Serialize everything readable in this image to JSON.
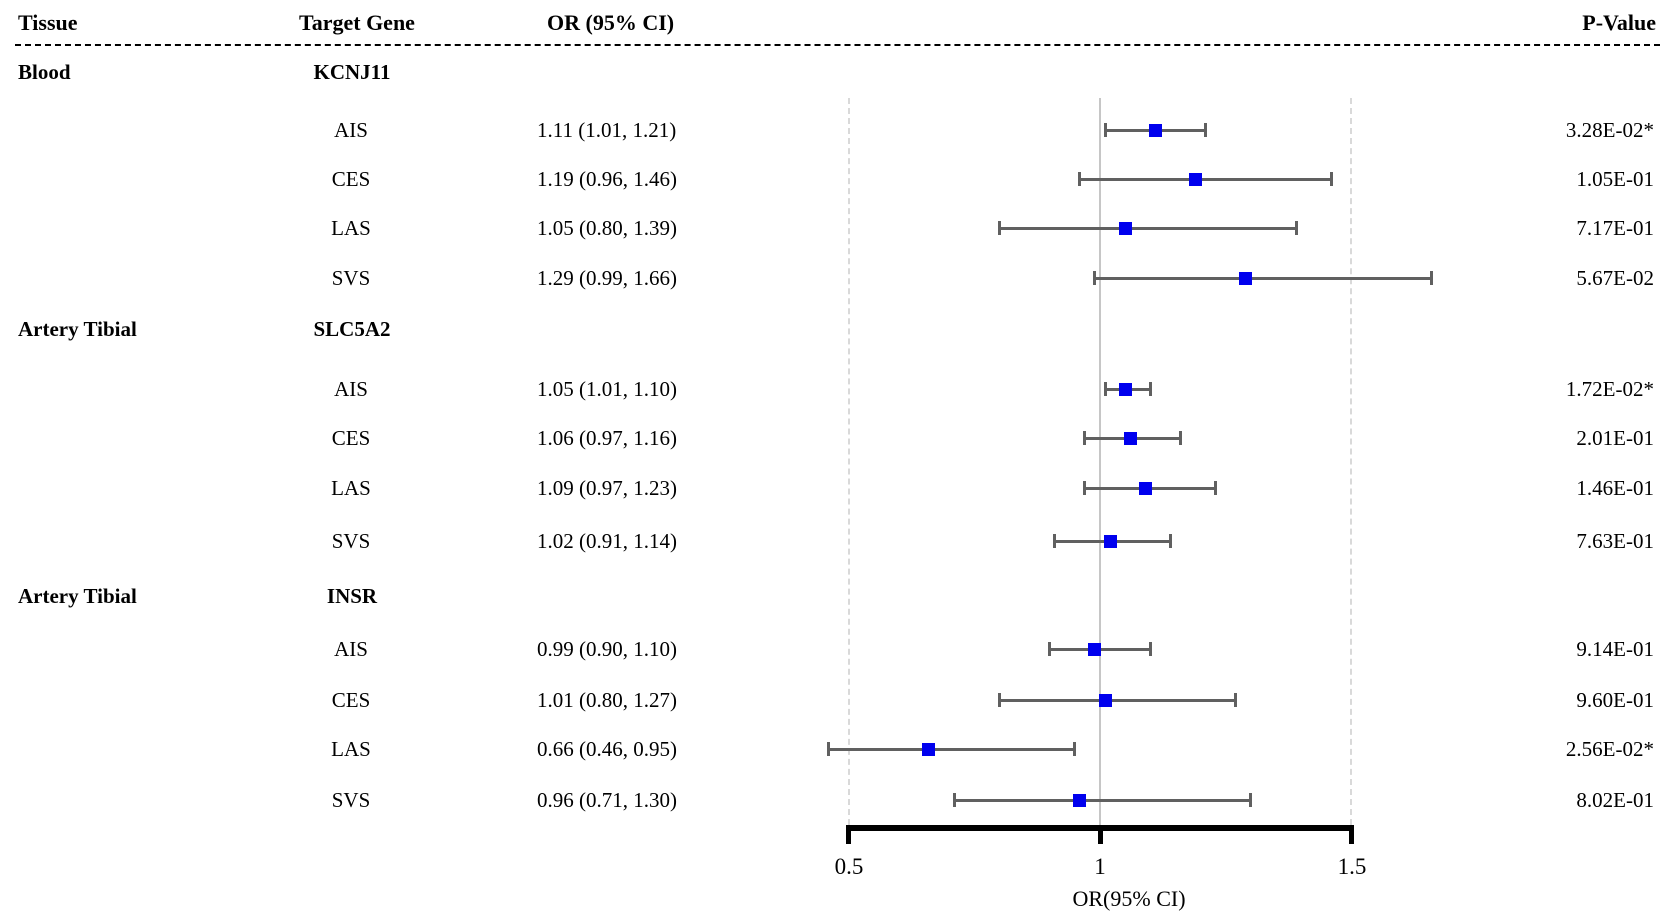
{
  "chart_data": {
    "type": "scatter",
    "subtype": "forest-plot",
    "title": "",
    "columns": {
      "tissue": "Tissue",
      "target_gene": "Target Gene",
      "or_ci": "OR (95% CI)",
      "p_value": "P-Value"
    },
    "axis": {
      "xlabel": "OR(95% CI)",
      "ticks": [
        "0.5",
        "1",
        "1.5"
      ],
      "tick_values": [
        0.5,
        1.0,
        1.5
      ],
      "xlim": [
        0.5,
        1.5
      ],
      "reference_line": 1.0,
      "dashed_gridlines": [
        0.5,
        1.5
      ],
      "grid": "dashed verticals at 0.5 and 1.5, solid gray at 1.0"
    },
    "groups": [
      {
        "tissue": "Blood",
        "target_gene": "KCNJ11",
        "rows": [
          {
            "subtype": "AIS",
            "or": 1.11,
            "ci_low": 1.01,
            "ci_high": 1.21,
            "or_ci_text": "1.11 (1.01, 1.21)",
            "p_value": "3.28E-02*",
            "significant": true
          },
          {
            "subtype": "CES",
            "or": 1.19,
            "ci_low": 0.96,
            "ci_high": 1.46,
            "or_ci_text": "1.19 (0.96, 1.46)",
            "p_value": "1.05E-01",
            "significant": false
          },
          {
            "subtype": "LAS",
            "or": 1.05,
            "ci_low": 0.8,
            "ci_high": 1.39,
            "or_ci_text": "1.05 (0.80, 1.39)",
            "p_value": "7.17E-01",
            "significant": false
          },
          {
            "subtype": "SVS",
            "or": 1.29,
            "ci_low": 0.99,
            "ci_high": 1.66,
            "or_ci_text": "1.29 (0.99, 1.66)",
            "p_value": "5.67E-02",
            "significant": false
          }
        ]
      },
      {
        "tissue": "Artery Tibial",
        "target_gene": "SLC5A2",
        "rows": [
          {
            "subtype": "AIS",
            "or": 1.05,
            "ci_low": 1.01,
            "ci_high": 1.1,
            "or_ci_text": "1.05 (1.01, 1.10)",
            "p_value": "1.72E-02*",
            "significant": true
          },
          {
            "subtype": "CES",
            "or": 1.06,
            "ci_low": 0.97,
            "ci_high": 1.16,
            "or_ci_text": "1.06 (0.97, 1.16)",
            "p_value": "2.01E-01",
            "significant": false
          },
          {
            "subtype": "LAS",
            "or": 1.09,
            "ci_low": 0.97,
            "ci_high": 1.23,
            "or_ci_text": "1.09 (0.97, 1.23)",
            "p_value": "1.46E-01",
            "significant": false
          },
          {
            "subtype": "SVS",
            "or": 1.02,
            "ci_low": 0.91,
            "ci_high": 1.14,
            "or_ci_text": "1.02 (0.91, 1.14)",
            "p_value": "7.63E-01",
            "significant": false
          }
        ]
      },
      {
        "tissue": "Artery Tibial",
        "target_gene": "INSR",
        "rows": [
          {
            "subtype": "AIS",
            "or": 0.99,
            "ci_low": 0.9,
            "ci_high": 1.1,
            "or_ci_text": "0.99 (0.90, 1.10)",
            "p_value": "9.14E-01",
            "significant": false
          },
          {
            "subtype": "CES",
            "or": 1.01,
            "ci_low": 0.8,
            "ci_high": 1.27,
            "or_ci_text": "1.01 (0.80, 1.27)",
            "p_value": "9.60E-01",
            "significant": false
          },
          {
            "subtype": "LAS",
            "or": 0.66,
            "ci_low": 0.46,
            "ci_high": 0.95,
            "or_ci_text": "0.66 (0.46, 0.95)",
            "p_value": "2.56E-02*",
            "significant": true
          },
          {
            "subtype": "SVS",
            "or": 0.96,
            "ci_low": 0.71,
            "ci_high": 1.3,
            "or_ci_text": "0.96 (0.71, 1.30)",
            "p_value": "8.02E-01",
            "significant": false
          }
        ]
      }
    ],
    "colors": {
      "marker": "#0000ee",
      "ci_line": "#606060",
      "reference_line": "#c6c6c6",
      "dashed_gridline": "#d9d9d9",
      "text": "#000000"
    },
    "legend_position": "none"
  }
}
